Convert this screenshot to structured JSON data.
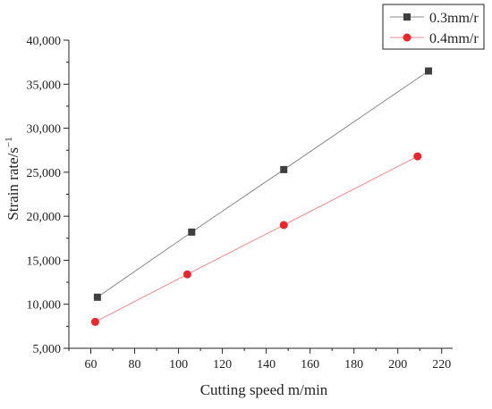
{
  "chart_data": {
    "type": "line",
    "title": "",
    "xlabel": "Cutting speed m/min",
    "ylabel": "Strain rate/s",
    "ylabel_superscript": "−1",
    "xlim": [
      50,
      225
    ],
    "ylim": [
      5000,
      40000
    ],
    "x_ticks": [
      60,
      80,
      100,
      120,
      140,
      160,
      180,
      200,
      220
    ],
    "y_ticks": [
      5000,
      10000,
      15000,
      20000,
      25000,
      30000,
      35000,
      40000
    ],
    "x_tick_labels": [
      "60",
      "80",
      "100",
      "120",
      "140",
      "160",
      "180",
      "200",
      "220"
    ],
    "y_tick_labels": [
      "5,000",
      "10,000",
      "15,000",
      "20,000",
      "25,000",
      "30,000",
      "35,000",
      "40,000"
    ],
    "grid": false,
    "legend_position": "top-right",
    "series": [
      {
        "name": "0.3mm/r",
        "marker": "square",
        "color": "#3f3f3f",
        "line_color": "#8a8a8a",
        "x": [
          63,
          106,
          148,
          214
        ],
        "y": [
          10800,
          18200,
          25300,
          36500
        ]
      },
      {
        "name": "0.4mm/r",
        "marker": "circle",
        "color": "#e8262c",
        "line_color": "#f08a8e",
        "x": [
          62,
          104,
          148,
          209
        ],
        "y": [
          8000,
          13400,
          19000,
          26800
        ]
      }
    ]
  }
}
